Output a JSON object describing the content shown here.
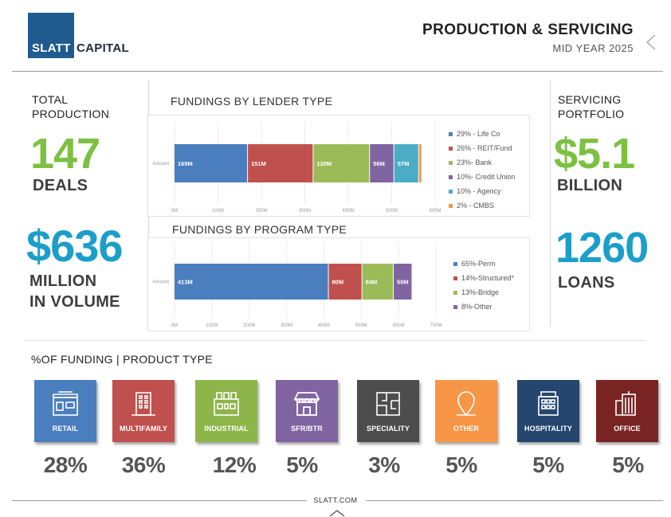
{
  "brand": {
    "logo_left": "SLATT",
    "logo_right": "CAPITAL",
    "accent": "#1f5b8e"
  },
  "header": {
    "title": "PRODUCTION & SERVICING",
    "subtitle": "MID YEAR 2025"
  },
  "left_stats": {
    "total_label_1": "TOTAL",
    "total_label_2": "PRODUCTION",
    "deals_value": "147",
    "deals_unit": "DEALS",
    "volume_value": "$636",
    "volume_unit_1": "MILLION",
    "volume_unit_2": "IN VOLUME",
    "green": "#7cc142",
    "teal": "#1b9ec9"
  },
  "right_stats": {
    "servicing_label_1": "SERVICING",
    "servicing_label_2": "PORTFOLIO",
    "portfolio_value": "$5.1",
    "portfolio_unit": "BILLION",
    "loans_value": "1260",
    "loans_unit": "LOANS"
  },
  "chart_data": [
    {
      "type": "bar",
      "orientation": "horizontal-stacked",
      "title": "FUNDINGS BY LENDER TYPE",
      "category_label": "Amount",
      "axis_min": 0,
      "axis_max": 600,
      "axis_step": 100,
      "axis_unit_suffix": "M",
      "segments": [
        {
          "value": 169,
          "label": "169M",
          "legend": "29% - Life Co",
          "color": "#4a7ebf"
        },
        {
          "value": 151,
          "label": "151M",
          "legend": "26% - REIT/Fund",
          "color": "#c0504d"
        },
        {
          "value": 130,
          "label": "130M",
          "legend": "23%- Bank",
          "color": "#9bbb59"
        },
        {
          "value": 56,
          "label": "56M",
          "legend": "10%- Credit Union",
          "color": "#8064a2"
        },
        {
          "value": 57,
          "label": "57M",
          "legend": "10% - Agency",
          "color": "#4bacc6"
        },
        {
          "value": 7,
          "label": "",
          "legend": "2% - CMBS",
          "color": "#f79646"
        }
      ]
    },
    {
      "type": "bar",
      "orientation": "horizontal-stacked",
      "title": "FUNDINGS BY PROGRAM TYPE",
      "category_label": "Amount",
      "axis_min": 0,
      "axis_max": 700,
      "axis_step": 100,
      "axis_unit_suffix": "M",
      "segments": [
        {
          "value": 413,
          "label": "413M",
          "legend": "65%-Perm",
          "color": "#4a7ebf"
        },
        {
          "value": 90,
          "label": "90M",
          "legend": "14%-Structured*",
          "color": "#c0504d"
        },
        {
          "value": 84,
          "label": "84M",
          "legend": "13%-Bridge",
          "color": "#9bbb59"
        },
        {
          "value": 50,
          "label": "50M",
          "legend": "8%-Other",
          "color": "#8064a2"
        }
      ]
    }
  ],
  "products": {
    "heading": "%OF FUNDING | PRODUCT TYPE",
    "items": [
      {
        "label": "RETAIL",
        "pct": "28%",
        "color": "#4a7ebf",
        "icon": "storefront-icon"
      },
      {
        "label": "MULTIFAMILY",
        "pct": "36%",
        "color": "#c0504d",
        "icon": "apartment-building-icon"
      },
      {
        "label": "INDUSTRIAL",
        "pct": "12%",
        "color": "#8db54a",
        "icon": "warehouse-icon"
      },
      {
        "label": "SFR/BTR",
        "pct": "5%",
        "color": "#8064a2",
        "icon": "shop-awning-icon"
      },
      {
        "label": "SPECIALITY",
        "pct": "3%",
        "color": "#4d4d4d",
        "icon": "floor-plan-icon"
      },
      {
        "label": "OTHER",
        "pct": "5%",
        "color": "#f79646",
        "icon": "location-pin-icon"
      },
      {
        "label": "HOSPITALITY",
        "pct": "5%",
        "color": "#25466e",
        "icon": "hotel-icon"
      },
      {
        "label": "OFFICE",
        "pct": "5%",
        "color": "#7a2424",
        "icon": "office-tower-icon"
      }
    ]
  },
  "footer": {
    "site": "SLATT.COM"
  }
}
